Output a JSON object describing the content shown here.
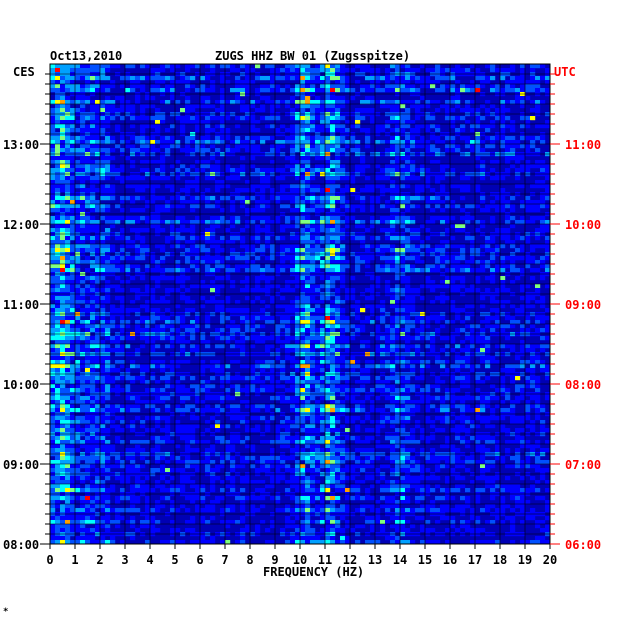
{
  "header": {
    "date": "Oct13,2010",
    "station": "ZUGS HHZ BW 01 (Zugsspitze)"
  },
  "timezones": {
    "left": "CES",
    "right": "UTC"
  },
  "footnote": "*",
  "colors": {
    "background": "#0000b4",
    "grid": "#000000",
    "utc": "#ff0000",
    "text": "#000000",
    "palette": [
      "#0000b4",
      "#0000ff",
      "#0050ff",
      "#00a0ff",
      "#00ffff",
      "#80ff80",
      "#ffff00",
      "#ffa000",
      "#ff0000"
    ]
  },
  "chart_data": {
    "type": "heatmap",
    "xlabel": "FREQUENCY (HZ)",
    "ylabel": "",
    "xlim": [
      0,
      20
    ],
    "ylim": [
      "08:00",
      "14:00"
    ],
    "x_ticks": [
      "0",
      "1",
      "2",
      "3",
      "4",
      "5",
      "6",
      "7",
      "8",
      "9",
      "10",
      "11",
      "12",
      "13",
      "14",
      "15",
      "16",
      "17",
      "18",
      "19",
      "20"
    ],
    "y_ticks_left": [
      "08:00",
      "09:00",
      "10:00",
      "11:00",
      "12:00",
      "13:00"
    ],
    "y_ticks_right": [
      "06:00",
      "07:00",
      "08:00",
      "09:00",
      "10:00",
      "11:00"
    ],
    "grid": true,
    "bands": [
      {
        "freq": 0.5,
        "intensity": 0.55
      },
      {
        "freq": 10.2,
        "intensity": 0.65
      },
      {
        "freq": 11.2,
        "intensity": 0.7
      },
      {
        "freq": 14.0,
        "intensity": 0.4
      }
    ]
  }
}
